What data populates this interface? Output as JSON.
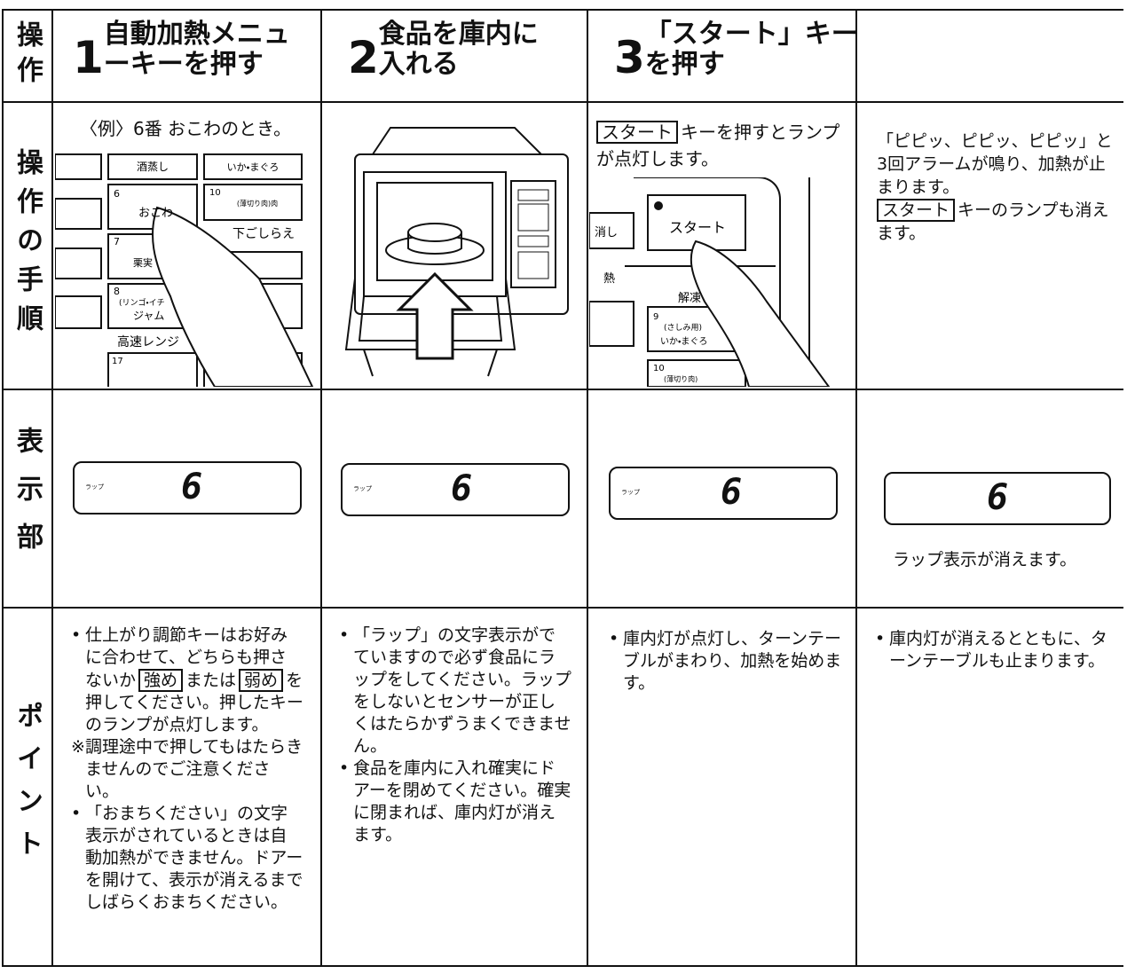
{
  "row_labels": [
    "操作",
    "操作の手順",
    "表示部",
    "ポイント"
  ],
  "steps": [
    {
      "number": "1",
      "title": "自動加熱メニューキーを押す"
    },
    {
      "number": "2",
      "title": "食品を庫内に入れる"
    },
    {
      "number": "3",
      "title": "「スタート」キーを押す"
    }
  ],
  "procedure": {
    "step1": {
      "example": "〈例〉6番 おこわのとき。",
      "keys": [
        "酒蒸し",
        "いか・まぐろ",
        "6",
        "おこわ",
        "10",
        "(薄切り肉)肉",
        "下ごしらえ",
        "7",
        "栗実",
        "8",
        "(リンゴ・イチ",
        "ジャム",
        "高速レンジ",
        "17"
      ]
    },
    "step3": {
      "key": "スタート",
      "text": "キーを押すとランプが点灯します。",
      "keys": [
        "消し",
        "スタート",
        "熱",
        "解凍",
        "9",
        "(さしみ用)",
        "いか・まぐろ",
        "10",
        "(薄切り肉)"
      ]
    },
    "step4": {
      "text": "「ピピッ、ピピッ、ピピッ」と3回アラームが鳴り、加熱が止まります。",
      "key": "スタート",
      "text2": "キーのランプも消えます。"
    }
  },
  "display": {
    "panels": [
      {
        "wrap": "ラップ",
        "digit": "6"
      },
      {
        "wrap": "ラップ",
        "digit": "6"
      },
      {
        "wrap": "ラップ",
        "digit": "6"
      },
      {
        "digit": "6"
      }
    ],
    "note": "ラップ表示が消えます。"
  },
  "points": [
    [
      {
        "mark": "•",
        "parts": [
          {
            "text": "仕上がり調節キーはお好みに合わせて、どちらも押さないか"
          },
          {
            "key": "強め"
          },
          {
            "text": "または"
          },
          {
            "key": "弱め"
          },
          {
            "text": "を押してください。押したキーのランプが点灯します。"
          }
        ]
      },
      {
        "mark": "※",
        "parts": [
          {
            "text": "調理途中で押してもはたらきませんのでご注意ください。"
          }
        ]
      },
      {
        "mark": "•",
        "parts": [
          {
            "text": "「おまちください」の文字表示がされているときは自動加熱ができません。ドアーを開けて、表示が消えるまでしばらくおまちください。"
          }
        ]
      }
    ],
    [
      {
        "mark": "•",
        "parts": [
          {
            "text": "「ラップ」の文字表示がでていますので必ず食品にラップをしてください。ラップをしないとセンサーが正しくはたらかずうまくできません。"
          }
        ]
      },
      {
        "mark": "•",
        "parts": [
          {
            "text": "食品を庫内に入れ確実にドアーを閉めてください。確実に閉まれば、庫内灯が消えます。"
          }
        ]
      }
    ],
    [
      {
        "mark": "•",
        "parts": [
          {
            "text": "庫内灯が点灯し、ターンテーブルがまわり、加熱を始めます。"
          }
        ]
      }
    ],
    [
      {
        "mark": "•",
        "parts": [
          {
            "text": "庫内灯が消えるとともに、ターンテーブルも止まります。"
          }
        ]
      }
    ]
  ]
}
